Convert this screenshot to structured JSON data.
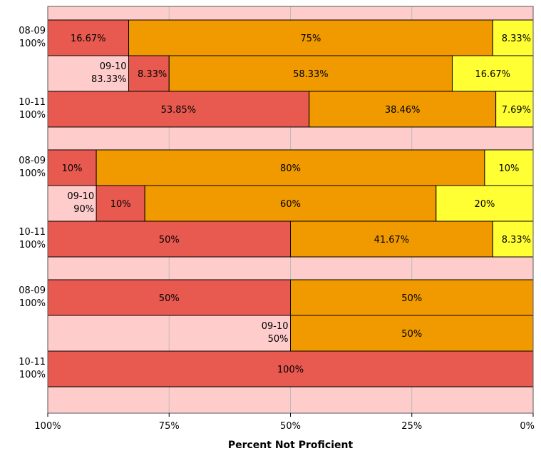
{
  "chart_data": {
    "type": "bar",
    "orientation": "horizontal-stacked",
    "xlabel": "Percent Not Proficient",
    "x_ticks": [
      "100%",
      "75%",
      "50%",
      "25%",
      "0%"
    ],
    "xlim": [
      100,
      0
    ],
    "grid": true,
    "colors": {
      "background": "#ffcccc",
      "band": "#ffcccc",
      "red": "#e85a50",
      "orange": "#f09a00",
      "yellow": "#ffff33",
      "grid": "#bbbbbb",
      "border": "#000000"
    },
    "groups": [
      {
        "rows": [
          {
            "label_line1": "08-09",
            "label_line2": "100%",
            "label_inside": false,
            "segments": [
              {
                "color": "red",
                "value": 16.67,
                "label": "16.67%"
              },
              {
                "color": "orange",
                "value": 75,
                "label": "75%"
              },
              {
                "color": "yellow",
                "value": 8.33,
                "label": "8.33%"
              }
            ]
          },
          {
            "label_line1": "09-10",
            "label_line2": "83.33%",
            "label_inside": true,
            "segments": [
              {
                "color": "red",
                "value": 8.33,
                "label": "8.33%"
              },
              {
                "color": "orange",
                "value": 58.33,
                "label": "58.33%"
              },
              {
                "color": "yellow",
                "value": 16.67,
                "label": "16.67%"
              }
            ]
          },
          {
            "label_line1": "10-11",
            "label_line2": "100%",
            "label_inside": false,
            "segments": [
              {
                "color": "red",
                "value": 53.85,
                "label": "53.85%"
              },
              {
                "color": "orange",
                "value": 38.46,
                "label": "38.46%"
              },
              {
                "color": "yellow",
                "value": 7.69,
                "label": "7.69%"
              }
            ]
          }
        ]
      },
      {
        "rows": [
          {
            "label_line1": "08-09",
            "label_line2": "100%",
            "label_inside": false,
            "segments": [
              {
                "color": "red",
                "value": 10,
                "label": "10%"
              },
              {
                "color": "orange",
                "value": 80,
                "label": "80%"
              },
              {
                "color": "yellow",
                "value": 10,
                "label": "10%"
              }
            ]
          },
          {
            "label_line1": "09-10",
            "label_line2": "90%",
            "label_inside": true,
            "segments": [
              {
                "color": "red",
                "value": 10,
                "label": "10%"
              },
              {
                "color": "orange",
                "value": 60,
                "label": "60%"
              },
              {
                "color": "yellow",
                "value": 20,
                "label": "20%"
              }
            ]
          },
          {
            "label_line1": "10-11",
            "label_line2": "100%",
            "label_inside": false,
            "segments": [
              {
                "color": "red",
                "value": 50,
                "label": "50%"
              },
              {
                "color": "orange",
                "value": 41.67,
                "label": "41.67%"
              },
              {
                "color": "yellow",
                "value": 8.33,
                "label": "8.33%"
              }
            ]
          }
        ]
      },
      {
        "rows": [
          {
            "label_line1": "08-09",
            "label_line2": "100%",
            "label_inside": false,
            "segments": [
              {
                "color": "red",
                "value": 50,
                "label": "50%"
              },
              {
                "color": "orange",
                "value": 50,
                "label": "50%"
              }
            ]
          },
          {
            "label_line1": "09-10",
            "label_line2": "50%",
            "label_inside": true,
            "segments": [
              {
                "color": "orange",
                "value": 50,
                "label": "50%"
              }
            ]
          },
          {
            "label_line1": "10-11",
            "label_line2": "100%",
            "label_inside": false,
            "segments": [
              {
                "color": "red",
                "value": 100,
                "label": "100%"
              }
            ]
          }
        ]
      }
    ]
  }
}
